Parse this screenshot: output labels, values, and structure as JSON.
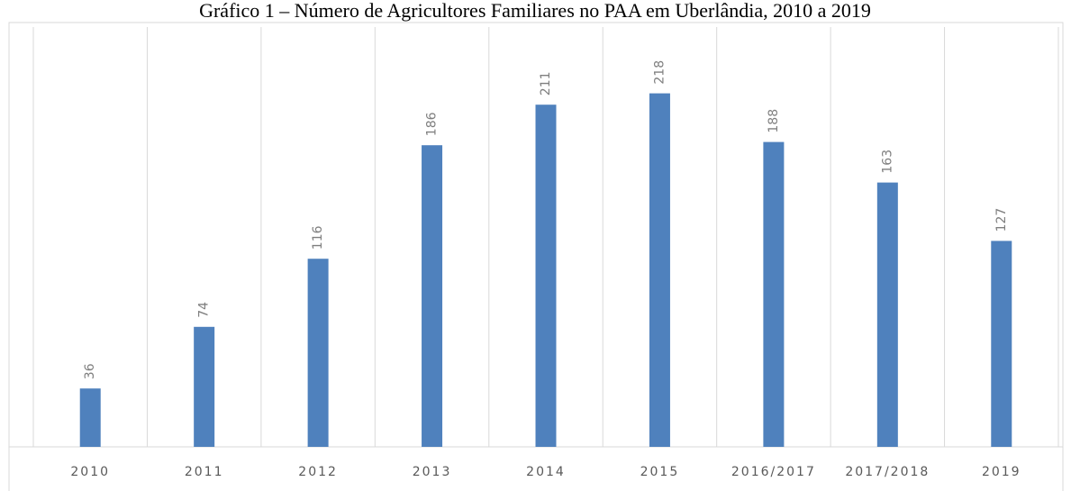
{
  "chart_data": {
    "type": "bar",
    "title": "Gráfico 1 – Número de Agricultores Familiares no PAA em Uberlândia, 2010 a 2019",
    "categories": [
      "2010",
      "2011",
      "2012",
      "2013",
      "2014",
      "2015",
      "2016/2017",
      "2017/2018",
      "2019"
    ],
    "values": [
      36,
      74,
      116,
      186,
      211,
      218,
      188,
      163,
      127
    ],
    "color": "#4f81bd",
    "ylim": [
      0,
      240
    ]
  }
}
